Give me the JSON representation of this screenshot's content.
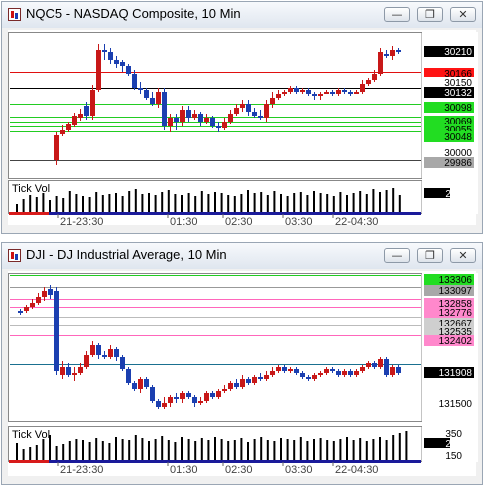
{
  "windows": [
    {
      "title": "NQC5 - NASDAQ Composite, 10 Min",
      "price_labels": [
        {
          "text": "30210",
          "bg": "#000000",
          "fg": "#ffffff"
        },
        {
          "text": "30166",
          "bg": "#ff1414",
          "fg": "#000000"
        },
        {
          "text": "30150",
          "bg": "#ffffff",
          "fg": "#000000"
        },
        {
          "text": "30132",
          "bg": "#000000",
          "fg": "#ffffff"
        },
        {
          "text": "30098",
          "bg": "#22dd22",
          "fg": "#000000"
        },
        {
          "text": "30069",
          "bg": "#22dd22",
          "fg": "#000000"
        },
        {
          "text": "30055",
          "bg": "#22dd22",
          "fg": "#000000"
        },
        {
          "text": "30048",
          "bg": "#22dd22",
          "fg": "#000000"
        },
        {
          "text": "30000",
          "bg": "#ffffff",
          "fg": "#000000"
        },
        {
          "text": "29986",
          "bg": "#a8a8a8",
          "fg": "#000000"
        }
      ],
      "volume_title": "Tick Vol",
      "volume_labels": [
        {
          "text": "230",
          "bg": "#000000",
          "fg": "#ffffff"
        }
      ],
      "time_labels": [
        "21-23:30",
        "01:30",
        "02:30",
        "03:30",
        "22-04:30"
      ]
    },
    {
      "title": "DJI - DJ Industrial Average, 10 Min",
      "price_labels": [
        {
          "text": "133306",
          "bg": "#22dd22",
          "fg": "#000000"
        },
        {
          "text": "133097",
          "bg": "#a8a8a8",
          "fg": "#000000"
        },
        {
          "text": "132858",
          "bg": "#ff88cc",
          "fg": "#000000"
        },
        {
          "text": "132776",
          "bg": "#ff88cc",
          "fg": "#000000"
        },
        {
          "text": "132667",
          "bg": "#cfcfcf",
          "fg": "#000000"
        },
        {
          "text": "132535",
          "bg": "#cfcfcf",
          "fg": "#000000"
        },
        {
          "text": "132402",
          "bg": "#ff88cc",
          "fg": "#000000"
        },
        {
          "text": "131908",
          "bg": "#000000",
          "fg": "#ffffff"
        },
        {
          "text": "131500",
          "bg": "#ffffff",
          "fg": "#000000"
        }
      ],
      "volume_title": "Tick Vol",
      "volume_labels": [
        {
          "text": "350",
          "bg": "#ffffff",
          "fg": "#000000"
        },
        {
          "text": "291",
          "bg": "#000000",
          "fg": "#ffffff"
        },
        {
          "text": "150",
          "bg": "#ffffff",
          "fg": "#000000"
        }
      ],
      "time_labels": [
        "21-23:30",
        "01:30",
        "02:30",
        "03:30",
        "22-04:30"
      ]
    }
  ],
  "icons": {
    "minimize": "minimize-icon",
    "restore": "restore-icon",
    "close": "close-icon"
  },
  "colors": {
    "up_candle": "#1b3fb0",
    "down_candle": "#c81818",
    "red_level": "#e01010",
    "green_level": "#22cc22",
    "pink_level": "#ff66bb",
    "session_red": "#d81a1a",
    "session_blue": "#1a1a9a"
  }
}
